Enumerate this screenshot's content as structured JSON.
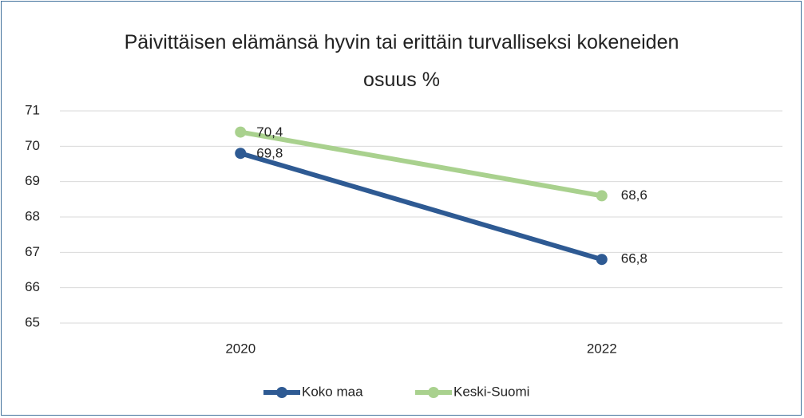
{
  "chart_data": {
    "type": "line",
    "title": "Päivittäisen elämänsä hyvin tai erittäin turvalliseksi kokeneiden osuus %",
    "categories": [
      "2020",
      "2022"
    ],
    "series": [
      {
        "name": "Koko maa",
        "color": "#2e5a93",
        "values": [
          69.8,
          66.8
        ],
        "value_labels": [
          "69,8",
          "66,8"
        ]
      },
      {
        "name": "Keski-Suomi",
        "color": "#a9d18e",
        "values": [
          70.4,
          68.6
        ],
        "value_labels": [
          "70,4",
          "68,6"
        ]
      }
    ],
    "ylim": [
      65,
      71
    ],
    "yticks": [
      65,
      66,
      67,
      68,
      69,
      70,
      71
    ],
    "grid": true,
    "legend": "bottom"
  }
}
